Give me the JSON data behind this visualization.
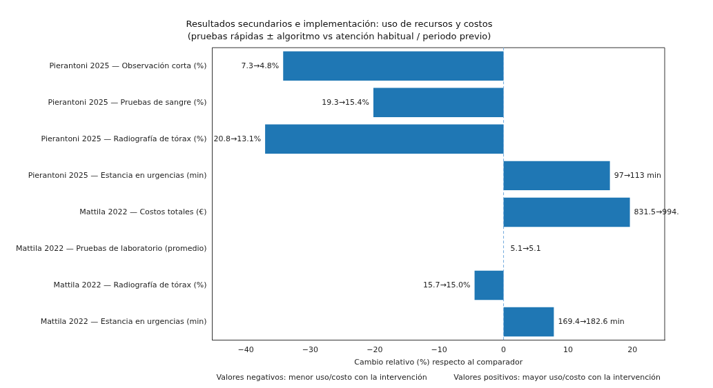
{
  "chart_data": {
    "type": "bar",
    "orientation": "horizontal",
    "title": "Resultados secundarios e implementación: uso de recursos y costos",
    "subtitle": "(pruebas rápidas ± algoritmo vs atención habitual / periodo previo)",
    "xlabel": "Cambio relativo (%) respecto al comparador",
    "categories": [
      "Pierantoni 2025 — Observación corta (%)",
      "Pierantoni 2025 — Pruebas de sangre (%)",
      "Pierantoni 2025 — Radiografía de tórax (%)",
      "Pierantoni 2025 — Estancia en urgencias (min)",
      "Mattila 2022 — Costos totales (€)",
      "Mattila 2022 — Pruebas de laboratorio (promedio)",
      "Mattila 2022 — Radiografía de tórax (%)",
      "Mattila 2022 — Estancia en urgencias (min)"
    ],
    "values": [
      -34.2,
      -20.2,
      -37.0,
      16.5,
      19.6,
      0,
      -4.5,
      7.8
    ],
    "color": "#1f77b4",
    "xlim": [
      -45.2,
      25
    ],
    "xticks": [
      {
        "value": -40,
        "label": "−40"
      },
      {
        "value": -30,
        "label": "−30"
      },
      {
        "value": -20,
        "label": "−20"
      },
      {
        "value": -10,
        "label": "−10"
      },
      0,
      10,
      20
    ],
    "ref_lines": [
      {
        "axis": "x",
        "value": 0,
        "color": "#6fa8dc",
        "line_style": "dashed"
      }
    ],
    "annotations": [
      {
        "text": "7.3→4.8%",
        "x": -34.2,
        "y": "Pierantoni 2025 — Observación corta (%)"
      },
      {
        "text": "19.3→15.4%",
        "x": -20.2,
        "y": "Pierantoni 2025 — Pruebas de sangre (%)"
      },
      {
        "text": "20.8→13.1%",
        "x": -37.0,
        "y": "Pierantoni 2025 — Radiografía de tórax (%)"
      },
      {
        "text": "97→113 min",
        "x": 16.5,
        "y": "Pierantoni 2025 — Estancia en urgencias (min)"
      },
      {
        "text": "831.5→994.",
        "x": 19.6,
        "y": "Mattila 2022 — Costos totales (€)"
      },
      {
        "text": "5.1→5.1",
        "x": 0,
        "y": "Mattila 2022 — Pruebas de laboratorio (promedio)"
      },
      {
        "text": "15.7→15.0%",
        "x": -4.5,
        "y": "Mattila 2022 — Radiografía de tórax (%)"
      },
      {
        "text": "169.4→182.6 min",
        "x": 7.8,
        "y": "Mattila 2022 — Estancia en urgencias (min)"
      },
      "Valores negativos: menor uso/costo con la intervención",
      "Valores positivos: mayor uso/costo con la intervención"
    ],
    "grid": false,
    "legend": false
  }
}
